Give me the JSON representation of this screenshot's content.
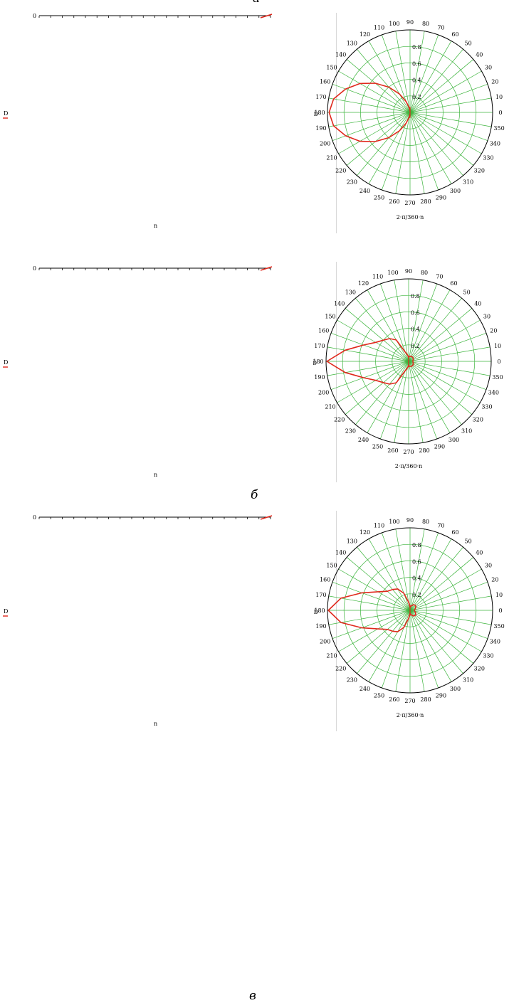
{
  "colors": {
    "curve": "#e0281c",
    "grid": "#3cb43c",
    "axis": "#000000",
    "separator": "#d8d8d8"
  },
  "panels": [
    {
      "label": "а",
      "rect_plot": {
        "y_axis_tick_top": "0",
        "y_axis_label": "D",
        "x_axis_label": "n"
      },
      "polar_plot": {
        "angle_label": "2·π/360·n",
        "radius_label": "D"
      }
    },
    {
      "label": "б",
      "rect_plot": {
        "y_axis_tick_top": "0",
        "y_axis_label": "D",
        "x_axis_label": "n"
      },
      "polar_plot": {
        "angle_label": "2·π/360·n",
        "radius_label": "D"
      }
    },
    {
      "label": "в",
      "rect_plot": {
        "y_axis_tick_top": "0",
        "y_axis_label": "D",
        "x_axis_label": "n"
      },
      "polar_plot": {
        "angle_label": "2·π/360·n",
        "radius_label": "D"
      }
    }
  ],
  "chart_data": [
    {
      "type": "line",
      "subplot": "а — rectangular plot",
      "series": [
        {
          "x": [],
          "y": []
        }
      ]
    },
    {
      "type": "line",
      "subplot": "а — polar plot",
      "polar": true,
      "angle_unit": "degrees",
      "angle_ticks": [
        0,
        10,
        20,
        30,
        40,
        50,
        60,
        70,
        80,
        90,
        100,
        110,
        120,
        130,
        140,
        150,
        160,
        170,
        180,
        190,
        200,
        210,
        220,
        230,
        240,
        250,
        260,
        270,
        280,
        290,
        300,
        310,
        320,
        330,
        340,
        350
      ],
      "radial_ticks": [
        0.2,
        0.4,
        0.6,
        0.8
      ],
      "rlim": [
        0,
        1
      ],
      "series": [
        {
          "theta": [
            90,
            100,
            110,
            120,
            130,
            140,
            150,
            160,
            170,
            180,
            190,
            200,
            210,
            220,
            230,
            240,
            250,
            260,
            270
          ],
          "r": [
            0.02,
            0.06,
            0.14,
            0.26,
            0.4,
            0.55,
            0.7,
            0.83,
            0.94,
            0.98,
            0.94,
            0.83,
            0.7,
            0.55,
            0.4,
            0.26,
            0.14,
            0.06,
            0.02
          ]
        }
      ]
    },
    {
      "type": "line",
      "subplot": "б — rectangular plot",
      "series": [
        {
          "x": [],
          "y": []
        }
      ]
    },
    {
      "type": "line",
      "subplot": "б — polar plot",
      "polar": true,
      "angle_unit": "degrees",
      "angle_ticks": [
        0,
        10,
        20,
        30,
        40,
        50,
        60,
        70,
        80,
        90,
        100,
        110,
        120,
        130,
        140,
        150,
        160,
        170,
        180,
        190,
        200,
        210,
        220,
        230,
        240,
        250,
        260,
        270,
        280,
        290,
        300,
        310,
        320,
        330,
        340,
        350
      ],
      "radial_ticks": [
        0.2,
        0.4,
        0.6,
        0.8
      ],
      "rlim": [
        0,
        1
      ],
      "series": [
        {
          "theta": [
            0,
            20,
            40,
            60,
            80,
            90,
            100,
            110,
            120,
            130,
            140,
            150,
            160,
            170,
            180,
            190,
            200,
            210,
            220,
            230,
            240,
            250,
            260,
            270,
            280,
            300,
            320,
            340,
            360
          ],
          "r": [
            0.05,
            0.06,
            0.07,
            0.07,
            0.06,
            0.05,
            0.08,
            0.12,
            0.3,
            0.36,
            0.4,
            0.46,
            0.58,
            0.78,
            0.99,
            0.78,
            0.58,
            0.46,
            0.4,
            0.36,
            0.3,
            0.12,
            0.08,
            0.05,
            0.06,
            0.07,
            0.07,
            0.06,
            0.05
          ]
        }
      ]
    },
    {
      "type": "line",
      "subplot": "в — rectangular plot",
      "series": [
        {
          "x": [],
          "y": []
        }
      ]
    },
    {
      "type": "line",
      "subplot": "в — polar plot",
      "polar": true,
      "angle_unit": "degrees",
      "angle_ticks": [
        0,
        10,
        20,
        30,
        40,
        50,
        60,
        70,
        80,
        90,
        100,
        110,
        120,
        130,
        140,
        150,
        160,
        170,
        180,
        190,
        200,
        210,
        220,
        230,
        240,
        250,
        260,
        270,
        280,
        290,
        300,
        310,
        320,
        330,
        340,
        350
      ],
      "radial_ticks": [
        0.2,
        0.4,
        0.6,
        0.8
      ],
      "rlim": [
        0,
        1
      ],
      "series": [
        {
          "theta": [
            0,
            20,
            40,
            60,
            80,
            90,
            100,
            110,
            120,
            130,
            140,
            150,
            160,
            170,
            180,
            190,
            200,
            210,
            220,
            230,
            240,
            250,
            260,
            270,
            280,
            300,
            320,
            340,
            360
          ],
          "r": [
            0.05,
            0.07,
            0.09,
            0.08,
            0.05,
            0.04,
            0.1,
            0.22,
            0.3,
            0.33,
            0.36,
            0.45,
            0.62,
            0.85,
            0.99,
            0.85,
            0.62,
            0.45,
            0.36,
            0.33,
            0.3,
            0.22,
            0.1,
            0.04,
            0.05,
            0.08,
            0.09,
            0.07,
            0.05
          ]
        }
      ]
    }
  ]
}
